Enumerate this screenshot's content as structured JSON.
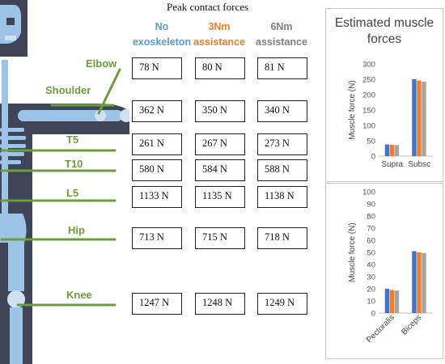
{
  "header": {
    "title": "Peak contact forces",
    "columns": [
      {
        "line1": "No",
        "line2": "exoskeleton",
        "color": "#5b9bd5"
      },
      {
        "line1": "3Nm",
        "line2": "assistance",
        "color": "#ed7d31"
      },
      {
        "line1": "6Nm",
        "line2": "assistance",
        "color": "#7f7f7f"
      }
    ]
  },
  "joints": [
    {
      "label": "Elbow",
      "values": [
        "78 N",
        "80 N",
        "81 N"
      ]
    },
    {
      "label": "Shoulder",
      "values": [
        "362 N",
        "350 N",
        "340 N"
      ]
    },
    {
      "label": "T5",
      "values": [
        "261 N",
        "267 N",
        "273 N"
      ]
    },
    {
      "label": "T10",
      "values": [
        "580 N",
        "584 N",
        "588 N"
      ]
    },
    {
      "label": "L5",
      "values": [
        "1133 N",
        "1135 N",
        "1138 N"
      ]
    },
    {
      "label": "Hip",
      "values": [
        "713 N",
        "715 N",
        "718 N"
      ]
    },
    {
      "label": "Knee",
      "values": [
        "1247 N",
        "1248 N",
        "1249 N"
      ]
    }
  ],
  "colors": {
    "joint_label": "#6e9d3e",
    "skeleton": "#9dc3e6",
    "body_outline": "#3f4556"
  },
  "chart_data": [
    {
      "type": "bar",
      "title": "Estimated muscle forces",
      "ylabel": "Muscle force (N)",
      "ylim": [
        0,
        300
      ],
      "yticks": [
        0,
        50,
        100,
        150,
        200,
        250,
        300
      ],
      "categories": [
        "Supra",
        "Subsc"
      ],
      "series": [
        {
          "values": [
            38,
            250
          ],
          "color": "#4472c4"
        },
        {
          "values": [
            37,
            246
          ],
          "color": "#ed7d31"
        },
        {
          "values": [
            36,
            242
          ],
          "color": "#a5a5a5"
        }
      ]
    },
    {
      "type": "bar",
      "title": "",
      "ylabel": "Muscle force (N)",
      "ylim": [
        0,
        100
      ],
      "yticks": [
        0,
        10,
        20,
        30,
        40,
        50,
        60,
        70,
        80,
        90,
        100
      ],
      "categories": [
        "Pectoralis",
        "Biceps"
      ],
      "series": [
        {
          "values": [
            20,
            51
          ],
          "color": "#4472c4"
        },
        {
          "values": [
            19,
            50
          ],
          "color": "#ed7d31"
        },
        {
          "values": [
            18.5,
            49.5
          ],
          "color": "#a5a5a5"
        }
      ]
    }
  ]
}
